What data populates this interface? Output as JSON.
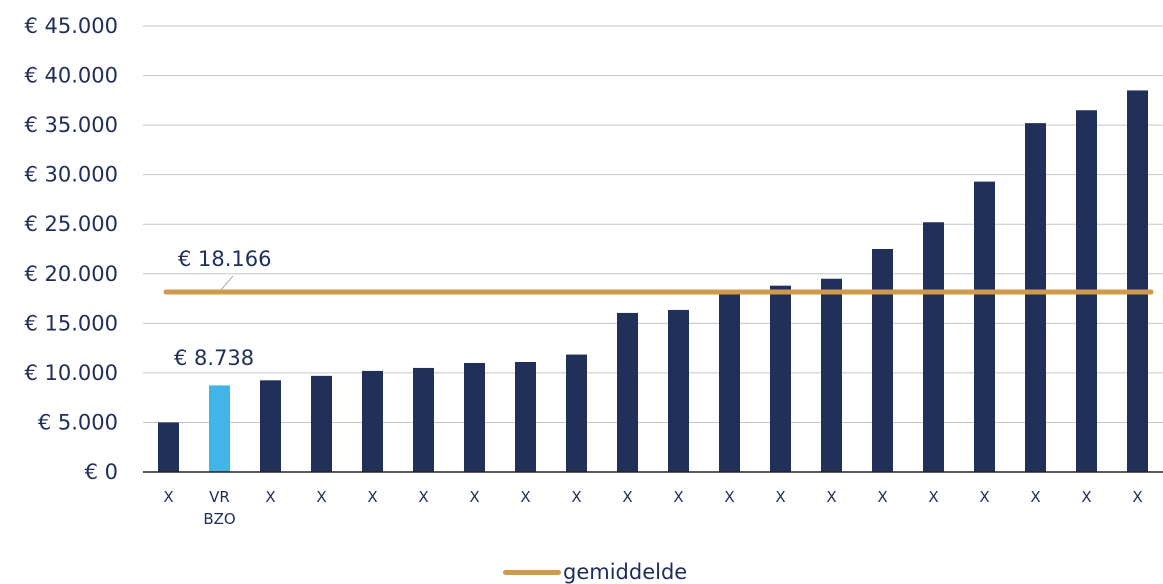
{
  "chart_data": {
    "type": "bar",
    "categories": [
      "X",
      "VR BZO",
      "X",
      "X",
      "X",
      "X",
      "X",
      "X",
      "X",
      "X",
      "X",
      "X",
      "X",
      "X",
      "X",
      "X",
      "X",
      "X",
      "X",
      "X"
    ],
    "values": [
      5000,
      8738,
      9250,
      9700,
      10200,
      10500,
      11000,
      11100,
      11850,
      16050,
      16350,
      18200,
      18800,
      19500,
      22500,
      25200,
      29300,
      35200,
      36500,
      38500
    ],
    "highlight_index": 1,
    "bar_color": "#213059",
    "highlight_color": "#41b6e6",
    "ylim": [
      0,
      45000
    ],
    "yticks": [
      0,
      5000,
      10000,
      15000,
      20000,
      25000,
      30000,
      35000,
      40000,
      45000
    ],
    "ytick_labels": [
      "€ 0",
      "€ 5.000",
      "€ 10.000",
      "€ 15.000",
      "€ 20.000",
      "€ 25.000",
      "€ 30.000",
      "€ 35.000",
      "€ 40.000",
      "€ 45.000"
    ],
    "grid": true,
    "average": {
      "name": "gemiddelde",
      "value": 18166,
      "label": "€ 18.166",
      "color": "#d09a4e"
    },
    "highlight_label": "€ 8.738",
    "legend": {
      "position": "bottom",
      "label": "gemiddelde"
    }
  }
}
